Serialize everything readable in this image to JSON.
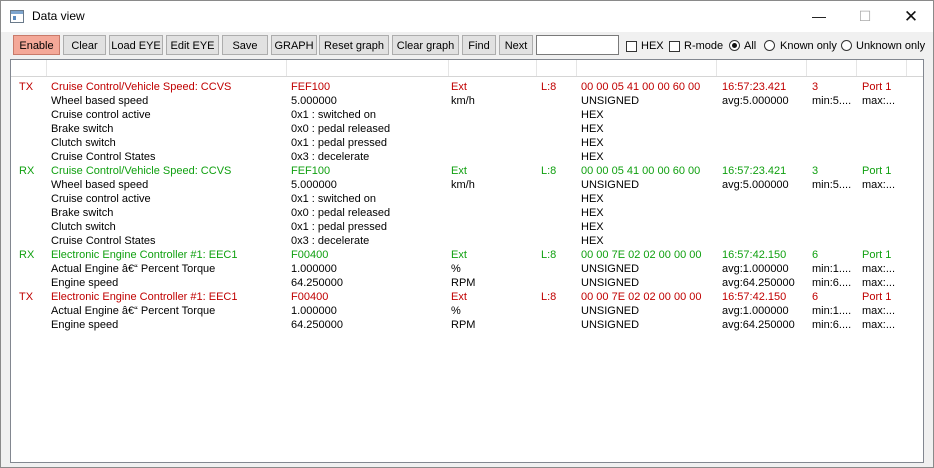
{
  "window": {
    "title": "Data view",
    "controls": {
      "minimize": "—",
      "maximize": "☐",
      "close": "✕"
    }
  },
  "toolbar": {
    "buttons": [
      {
        "id": "enable",
        "label": "Enable"
      },
      {
        "id": "clear",
        "label": "Clear"
      },
      {
        "id": "load-eye",
        "label": "Load EYE"
      },
      {
        "id": "edit-eye",
        "label": "Edit EYE"
      },
      {
        "id": "save",
        "label": "Save"
      },
      {
        "id": "graph",
        "label": "GRAPH"
      },
      {
        "id": "reset-graph",
        "label": "Reset graph"
      },
      {
        "id": "clear-graph",
        "label": "Clear graph"
      },
      {
        "id": "find",
        "label": "Find"
      },
      {
        "id": "next",
        "label": "Next"
      }
    ],
    "search_value": "",
    "hex_label": "HEX",
    "rmode_label": "R-mode",
    "filter": {
      "all_label": "All",
      "known_label": "Known only",
      "unknown_label": "Unknown only",
      "selected": "All"
    }
  },
  "colors": {
    "tx": "#c00000",
    "rx": "#10a010",
    "enable_active": "#f4a898"
  },
  "rows": [
    {
      "kind": "msg",
      "dir": "TX",
      "name": "Cruise Control/Vehicle Speed: CCVS",
      "val": "FEF100",
      "unit": "Ext",
      "len": "L:8",
      "data": "00 00 05 41 00 00 60 00",
      "time": "16:57:23.421",
      "cnt": "3",
      "port": "Port 1"
    },
    {
      "kind": "sig",
      "dir": "",
      "name": "Wheel based speed",
      "val": "5.000000",
      "unit": "km/h",
      "len": "",
      "data": "UNSIGNED",
      "time": "avg:5.000000",
      "cnt": "min:5....",
      "port": "max:..."
    },
    {
      "kind": "sig",
      "dir": "",
      "name": "Cruise control active",
      "val": "0x1 : switched on",
      "unit": "",
      "len": "",
      "data": "HEX",
      "time": "",
      "cnt": "",
      "port": ""
    },
    {
      "kind": "sig",
      "dir": "",
      "name": "Brake switch",
      "val": "0x0 : pedal released",
      "unit": "",
      "len": "",
      "data": "HEX",
      "time": "",
      "cnt": "",
      "port": ""
    },
    {
      "kind": "sig",
      "dir": "",
      "name": "Clutch switch",
      "val": "0x1 : pedal pressed",
      "unit": "",
      "len": "",
      "data": "HEX",
      "time": "",
      "cnt": "",
      "port": ""
    },
    {
      "kind": "sig",
      "dir": "",
      "name": "Cruise Control States",
      "val": "0x3 : decelerate",
      "unit": "",
      "len": "",
      "data": "HEX",
      "time": "",
      "cnt": "",
      "port": ""
    },
    {
      "kind": "msg",
      "dir": "RX",
      "name": "Cruise Control/Vehicle Speed: CCVS",
      "val": "FEF100",
      "unit": "Ext",
      "len": "L:8",
      "data": "00 00 05 41 00 00 60 00",
      "time": "16:57:23.421",
      "cnt": "3",
      "port": "Port 1"
    },
    {
      "kind": "sig",
      "dir": "",
      "name": "Wheel based speed",
      "val": "5.000000",
      "unit": "km/h",
      "len": "",
      "data": "UNSIGNED",
      "time": "avg:5.000000",
      "cnt": "min:5....",
      "port": "max:..."
    },
    {
      "kind": "sig",
      "dir": "",
      "name": "Cruise control active",
      "val": "0x1 : switched on",
      "unit": "",
      "len": "",
      "data": "HEX",
      "time": "",
      "cnt": "",
      "port": ""
    },
    {
      "kind": "sig",
      "dir": "",
      "name": "Brake switch",
      "val": "0x0 : pedal released",
      "unit": "",
      "len": "",
      "data": "HEX",
      "time": "",
      "cnt": "",
      "port": ""
    },
    {
      "kind": "sig",
      "dir": "",
      "name": "Clutch switch",
      "val": "0x1 : pedal pressed",
      "unit": "",
      "len": "",
      "data": "HEX",
      "time": "",
      "cnt": "",
      "port": ""
    },
    {
      "kind": "sig",
      "dir": "",
      "name": "Cruise Control States",
      "val": "0x3 : decelerate",
      "unit": "",
      "len": "",
      "data": "HEX",
      "time": "",
      "cnt": "",
      "port": ""
    },
    {
      "kind": "msg",
      "dir": "RX",
      "name": "Electronic Engine Controller #1: EEC1",
      "val": "F00400",
      "unit": "Ext",
      "len": "L:8",
      "data": "00 00 7E 02 02 00 00 00",
      "time": "16:57:42.150",
      "cnt": "6",
      "port": "Port 1"
    },
    {
      "kind": "sig",
      "dir": "",
      "name": "Actual Engine â€“ Percent Torque",
      "val": "1.000000",
      "unit": "%",
      "len": "",
      "data": "UNSIGNED",
      "time": "avg:1.000000",
      "cnt": "min:1....",
      "port": "max:..."
    },
    {
      "kind": "sig",
      "dir": "",
      "name": "Engine speed",
      "val": "64.250000",
      "unit": "RPM",
      "len": "",
      "data": "UNSIGNED",
      "time": "avg:64.250000",
      "cnt": "min:6....",
      "port": "max:..."
    },
    {
      "kind": "msg",
      "dir": "TX",
      "name": "Electronic Engine Controller #1: EEC1",
      "val": "F00400",
      "unit": "Ext",
      "len": "L:8",
      "data": "00 00 7E 02 02 00 00 00",
      "time": "16:57:42.150",
      "cnt": "6",
      "port": "Port 1"
    },
    {
      "kind": "sig",
      "dir": "",
      "name": "Actual Engine â€“ Percent Torque",
      "val": "1.000000",
      "unit": "%",
      "len": "",
      "data": "UNSIGNED",
      "time": "avg:1.000000",
      "cnt": "min:1....",
      "port": "max:..."
    },
    {
      "kind": "sig",
      "dir": "",
      "name": "Engine speed",
      "val": "64.250000",
      "unit": "RPM",
      "len": "",
      "data": "UNSIGNED",
      "time": "avg:64.250000",
      "cnt": "min:6....",
      "port": "max:..."
    }
  ]
}
